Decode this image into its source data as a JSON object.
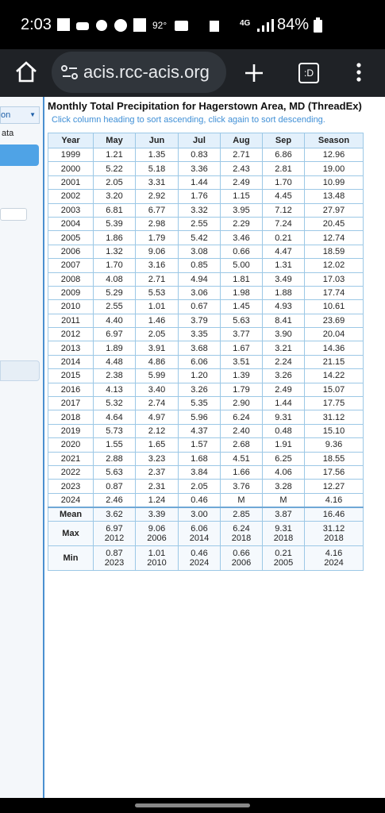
{
  "status_bar": {
    "time": "2:03",
    "temperature": "92°",
    "network": "4G",
    "battery": "84%"
  },
  "browser": {
    "url": "acis.rcc-acis.org",
    "tab_label": ":D"
  },
  "sidebar": {
    "dropdown": "on",
    "item": "ata"
  },
  "header": {
    "title": "Monthly Total Precipitation for Hagerstown Area, MD (ThreadEx)",
    "subtitle": "Click column heading to sort ascending, click again to sort descending."
  },
  "table": {
    "columns": [
      "Year",
      "May",
      "Jun",
      "Jul",
      "Aug",
      "Sep",
      "Season"
    ],
    "rows": [
      [
        "1999",
        "1.21",
        "1.35",
        "0.83",
        "2.71",
        "6.86",
        "12.96"
      ],
      [
        "2000",
        "5.22",
        "5.18",
        "3.36",
        "2.43",
        "2.81",
        "19.00"
      ],
      [
        "2001",
        "2.05",
        "3.31",
        "1.44",
        "2.49",
        "1.70",
        "10.99"
      ],
      [
        "2002",
        "3.20",
        "2.92",
        "1.76",
        "1.15",
        "4.45",
        "13.48"
      ],
      [
        "2003",
        "6.81",
        "6.77",
        "3.32",
        "3.95",
        "7.12",
        "27.97"
      ],
      [
        "2004",
        "5.39",
        "2.98",
        "2.55",
        "2.29",
        "7.24",
        "20.45"
      ],
      [
        "2005",
        "1.86",
        "1.79",
        "5.42",
        "3.46",
        "0.21",
        "12.74"
      ],
      [
        "2006",
        "1.32",
        "9.06",
        "3.08",
        "0.66",
        "4.47",
        "18.59"
      ],
      [
        "2007",
        "1.70",
        "3.16",
        "0.85",
        "5.00",
        "1.31",
        "12.02"
      ],
      [
        "2008",
        "4.08",
        "2.71",
        "4.94",
        "1.81",
        "3.49",
        "17.03"
      ],
      [
        "2009",
        "5.29",
        "5.53",
        "3.06",
        "1.98",
        "1.88",
        "17.74"
      ],
      [
        "2010",
        "2.55",
        "1.01",
        "0.67",
        "1.45",
        "4.93",
        "10.61"
      ],
      [
        "2011",
        "4.40",
        "1.46",
        "3.79",
        "5.63",
        "8.41",
        "23.69"
      ],
      [
        "2012",
        "6.97",
        "2.05",
        "3.35",
        "3.77",
        "3.90",
        "20.04"
      ],
      [
        "2013",
        "1.89",
        "3.91",
        "3.68",
        "1.67",
        "3.21",
        "14.36"
      ],
      [
        "2014",
        "4.48",
        "4.86",
        "6.06",
        "3.51",
        "2.24",
        "21.15"
      ],
      [
        "2015",
        "2.38",
        "5.99",
        "1.20",
        "1.39",
        "3.26",
        "14.22"
      ],
      [
        "2016",
        "4.13",
        "3.40",
        "3.26",
        "1.79",
        "2.49",
        "15.07"
      ],
      [
        "2017",
        "5.32",
        "2.74",
        "5.35",
        "2.90",
        "1.44",
        "17.75"
      ],
      [
        "2018",
        "4.64",
        "4.97",
        "5.96",
        "6.24",
        "9.31",
        "31.12"
      ],
      [
        "2019",
        "5.73",
        "2.12",
        "4.37",
        "2.40",
        "0.48",
        "15.10"
      ],
      [
        "2020",
        "1.55",
        "1.65",
        "1.57",
        "2.68",
        "1.91",
        "9.36"
      ],
      [
        "2021",
        "2.88",
        "3.23",
        "1.68",
        "4.51",
        "6.25",
        "18.55"
      ],
      [
        "2022",
        "5.63",
        "2.37",
        "3.84",
        "1.66",
        "4.06",
        "17.56"
      ],
      [
        "2023",
        "0.87",
        "2.31",
        "2.05",
        "3.76",
        "3.28",
        "12.27"
      ],
      [
        "2024",
        "2.46",
        "1.24",
        "0.46",
        "M",
        "M",
        "4.16"
      ]
    ],
    "summary": [
      {
        "label": "Mean",
        "cells": [
          [
            "3.62"
          ],
          [
            "3.39"
          ],
          [
            "3.00"
          ],
          [
            "2.85"
          ],
          [
            "3.87"
          ],
          [
            "16.46"
          ]
        ]
      },
      {
        "label": "Max",
        "cells": [
          [
            "6.97",
            "2012"
          ],
          [
            "9.06",
            "2006"
          ],
          [
            "6.06",
            "2014"
          ],
          [
            "6.24",
            "2018"
          ],
          [
            "9.31",
            "2018"
          ],
          [
            "31.12",
            "2018"
          ]
        ]
      },
      {
        "label": "Min",
        "cells": [
          [
            "0.87",
            "2023"
          ],
          [
            "1.01",
            "2010"
          ],
          [
            "0.46",
            "2024"
          ],
          [
            "0.66",
            "2006"
          ],
          [
            "0.21",
            "2005"
          ],
          [
            "4.16",
            "2024"
          ]
        ]
      }
    ]
  }
}
